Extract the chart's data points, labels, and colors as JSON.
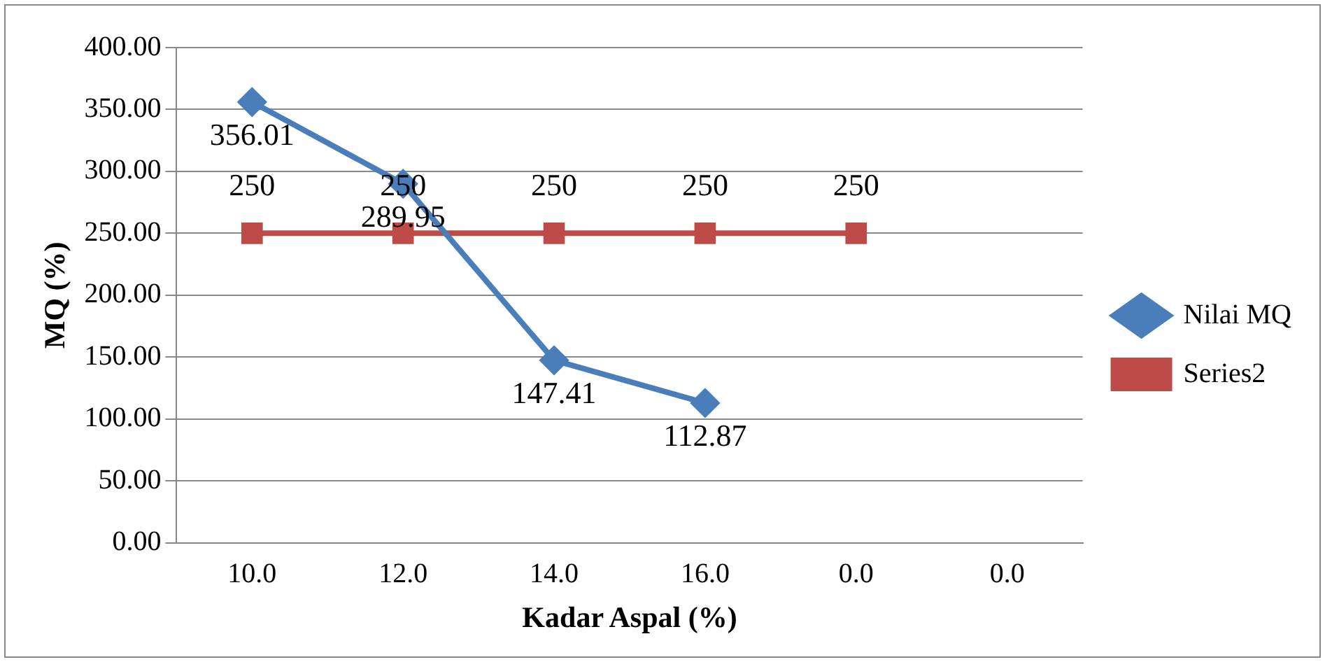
{
  "chart_data": {
    "type": "line",
    "xlabel": "Kadar Aspal (%)",
    "ylabel": "MQ (%)",
    "categories": [
      "10.0",
      "12.0",
      "14.0",
      "16.0",
      "0.0",
      "0.0"
    ],
    "series": [
      {
        "name": "Nilai MQ",
        "color": "#4a7ebb",
        "marker": "diamond",
        "values": [
          356.01,
          289.95,
          147.41,
          112.87,
          null,
          null
        ]
      },
      {
        "name": "Series2",
        "color": "#be4b48",
        "marker": "square",
        "values": [
          250,
          250,
          250,
          250,
          250,
          null
        ]
      }
    ],
    "ylim": [
      0,
      400
    ],
    "yticks": [
      {
        "value": 0,
        "label": "0.00"
      },
      {
        "value": 50,
        "label": "50.00"
      },
      {
        "value": 100,
        "label": "100.00"
      },
      {
        "value": 150,
        "label": "150.00"
      },
      {
        "value": 200,
        "label": "200.00"
      },
      {
        "value": 250,
        "label": "250.00"
      },
      {
        "value": 300,
        "label": "300.00"
      },
      {
        "value": 350,
        "label": "350.00"
      },
      {
        "value": 400,
        "label": "400.00"
      }
    ],
    "grid": "y",
    "legend": "right",
    "data_labels": true,
    "line_style": "solid"
  }
}
